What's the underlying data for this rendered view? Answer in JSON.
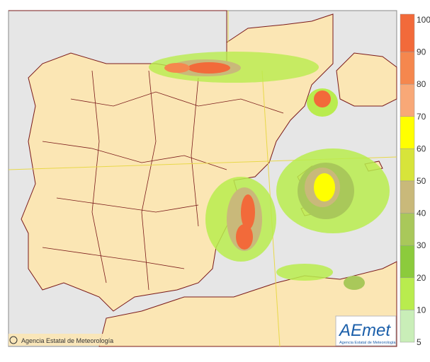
{
  "credit": "Agencia Estatal de Meteorología",
  "logo": {
    "name": "AEmet",
    "subtitle": "Agencia Estatal de Meteorología"
  },
  "legend": {
    "labels": [
      "100",
      "90",
      "80",
      "70",
      "60",
      "50",
      "40",
      "30",
      "20",
      "10",
      "5"
    ],
    "colors": [
      "#f26a3a",
      "#f5874e",
      "#f8a877",
      "#ffff00",
      "#d7e43a",
      "#c9b97a",
      "#a9c85a",
      "#8ccb3c",
      "#b9ec4e",
      "#c9eeb8"
    ]
  }
}
